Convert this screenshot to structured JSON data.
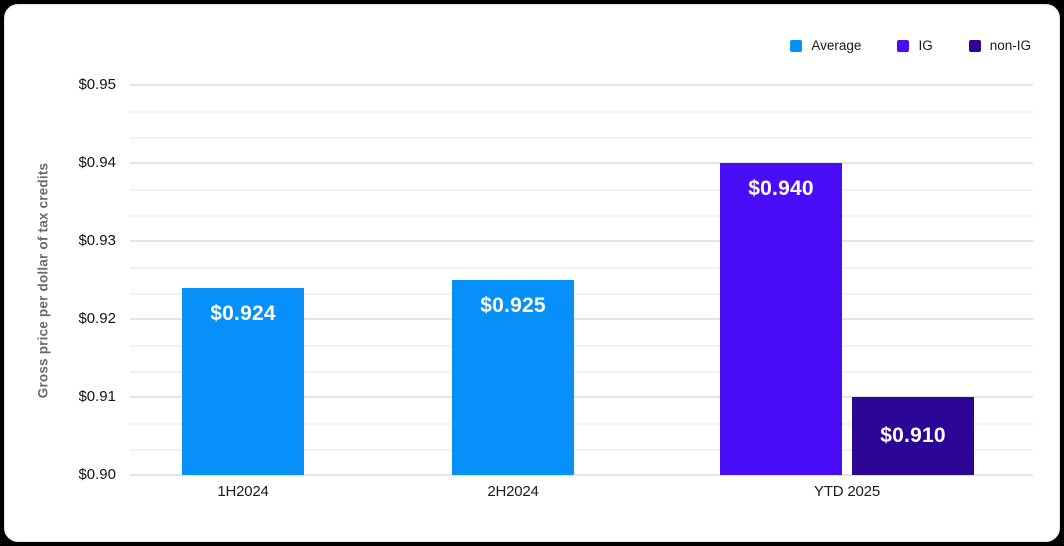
{
  "chart_data": {
    "type": "bar",
    "ylabel": "Gross price per dollar of tax credits",
    "xlabel": "",
    "ylim": [
      0.9,
      0.95
    ],
    "grid": "horizontal, major every 0.01 with 2 minor lines per interval",
    "legend_position": "top-right",
    "y_ticks": [
      "$0.95",
      "$0.94",
      "$0.93",
      "$0.92",
      "$0.91",
      "$0.90"
    ],
    "categories": [
      "1H2024",
      "2H2024",
      "YTD 2025"
    ],
    "legend": [
      {
        "label": "Average",
        "color": "#078FFA"
      },
      {
        "label": "IG",
        "color": "#4A0DF7"
      },
      {
        "label": "non-IG",
        "color": "#2B0697"
      }
    ],
    "bars": [
      {
        "category": "1H2024",
        "series": "Average",
        "value": 0.924,
        "label": "$0.924",
        "label_pos": "top"
      },
      {
        "category": "2H2024",
        "series": "Average",
        "value": 0.925,
        "label": "$0.925",
        "label_pos": "top"
      },
      {
        "category": "YTD 2025",
        "series": "IG",
        "value": 0.94,
        "label": "$0.940",
        "label_pos": "top"
      },
      {
        "category": "YTD 2025",
        "series": "non-IG",
        "value": 0.91,
        "label": "$0.910",
        "label_pos": "middle"
      }
    ]
  }
}
